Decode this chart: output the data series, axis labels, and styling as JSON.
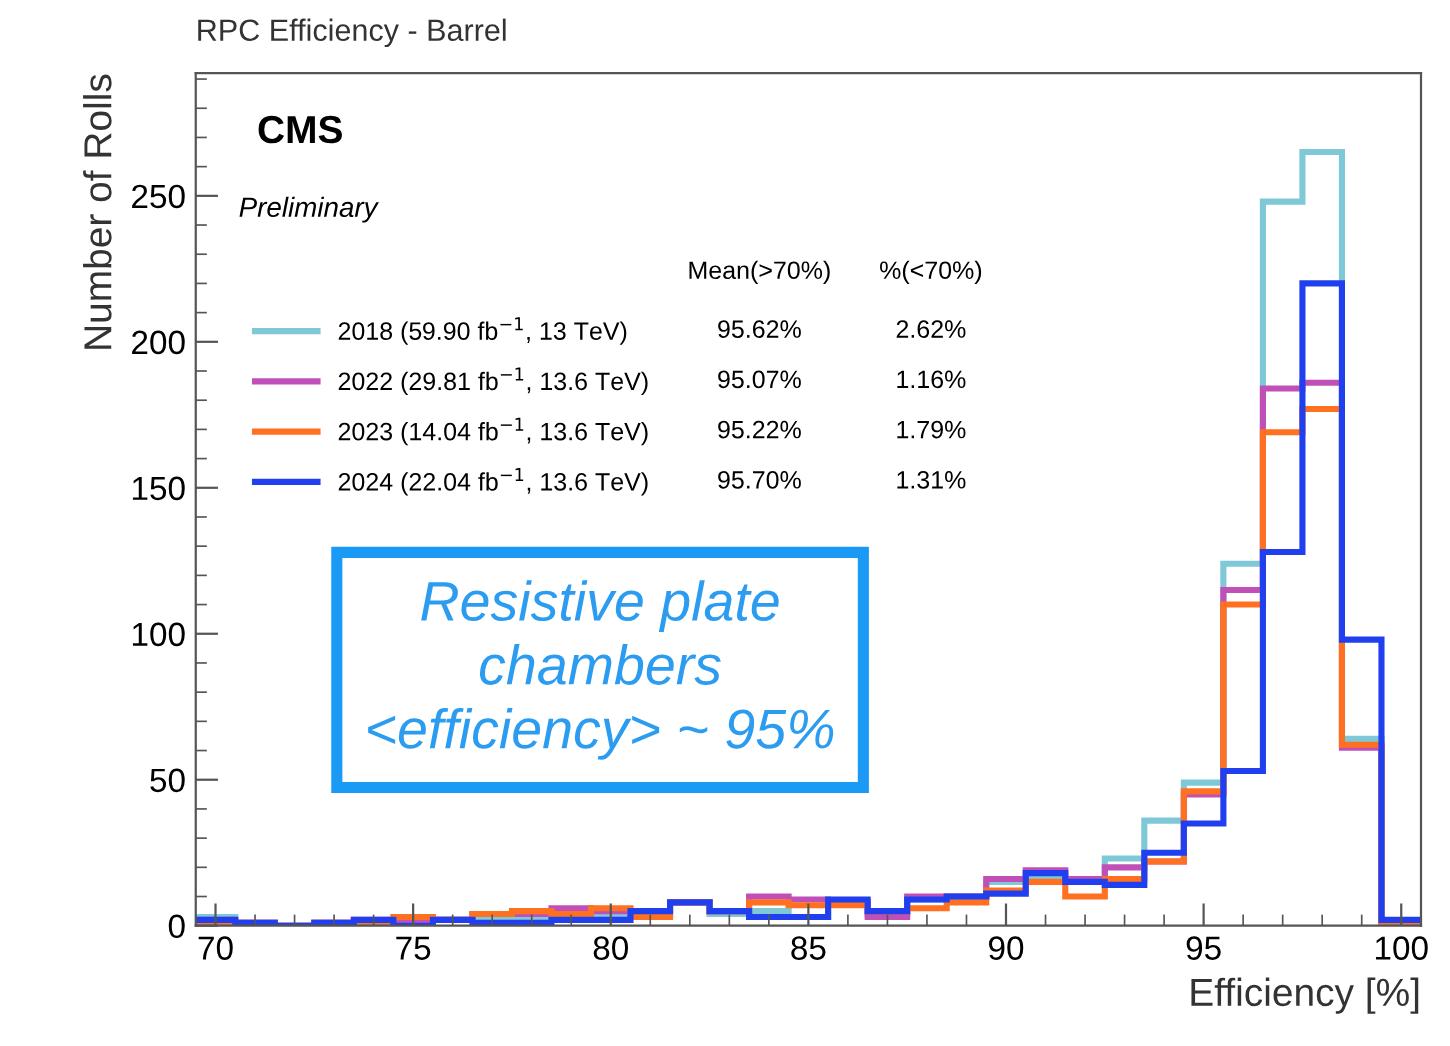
{
  "chart_data": {
    "type": "histogram",
    "title": "RPC Efficiency - Barrel",
    "xlabel": "Efficiency [%]",
    "ylabel": "Number of Rolls",
    "bins": [
      69.5,
      70.5,
      71.5,
      72.5,
      73.5,
      74.5,
      75.5,
      76.5,
      77.5,
      78.5,
      79.5,
      80.5,
      81.5,
      82.5,
      83.5,
      84.5,
      85.5,
      86.5,
      87.5,
      88.5,
      89.5,
      90.5,
      91.5,
      92.5,
      93.5,
      94.5,
      95.5,
      96.5,
      97.5,
      98.5,
      99.5,
      100.5
    ],
    "series": [
      {
        "name": "2018 (59.90 fb$^{−1}$, 13 TeV)",
        "color": "#7ec8d8",
        "values": [
          3,
          1,
          0,
          1,
          1,
          2,
          2,
          2,
          3,
          3,
          4,
          4,
          8,
          4,
          5,
          3,
          8,
          4,
          9,
          10,
          15,
          17,
          16,
          23,
          36,
          49,
          124,
          248,
          265,
          64,
          0
        ]
      },
      {
        "name": "2022 (29.81 fb$^{−1}$, 13.6 TeV)",
        "color": "#c050b8",
        "values": [
          2,
          1,
          0,
          1,
          2,
          2,
          2,
          4,
          4,
          6,
          5,
          4,
          8,
          5,
          10,
          9,
          8,
          3,
          10,
          10,
          16,
          19,
          16,
          20,
          22,
          45,
          115,
          184,
          186,
          61,
          0
        ]
      },
      {
        "name": "2023 (14.04 fb$^{−1}$, 13.6 TeV)",
        "color": "#ff7020",
        "values": [
          1,
          1,
          0,
          1,
          0,
          3,
          2,
          4,
          5,
          4,
          6,
          3,
          8,
          5,
          8,
          7,
          7,
          5,
          6,
          8,
          12,
          15,
          10,
          16,
          22,
          46,
          110,
          169,
          177,
          62,
          0
        ]
      },
      {
        "name": "2024 (22.04 fb$^{−1}$, 13.6 TeV)",
        "color": "#2040f0",
        "values": [
          2,
          1,
          0,
          1,
          2,
          0,
          2,
          1,
          1,
          2,
          2,
          5,
          8,
          5,
          3,
          3,
          9,
          5,
          9,
          10,
          11,
          18,
          15,
          14,
          25,
          35,
          53,
          128,
          220,
          98,
          2
        ]
      }
    ],
    "annotations": [
      "CMS",
      "Preliminary",
      "Mean(>70%)",
      "%(<70%)",
      "95.62%",
      "2.62%",
      "95.07%",
      "1.16%",
      "95.22%",
      "1.79%",
      "95.70%",
      "1.31%",
      "Resistive plate\nchambers\n<efficiency> ~ 95%"
    ],
    "xlim": [
      69.5,
      100.5
    ],
    "xticks": [
      70,
      75,
      80,
      85,
      90,
      95,
      100
    ],
    "ylim": [
      0,
      292
    ],
    "yticks": [
      0,
      50,
      100,
      150,
      200,
      250
    ],
    "legend": "top left",
    "grid": false
  }
}
